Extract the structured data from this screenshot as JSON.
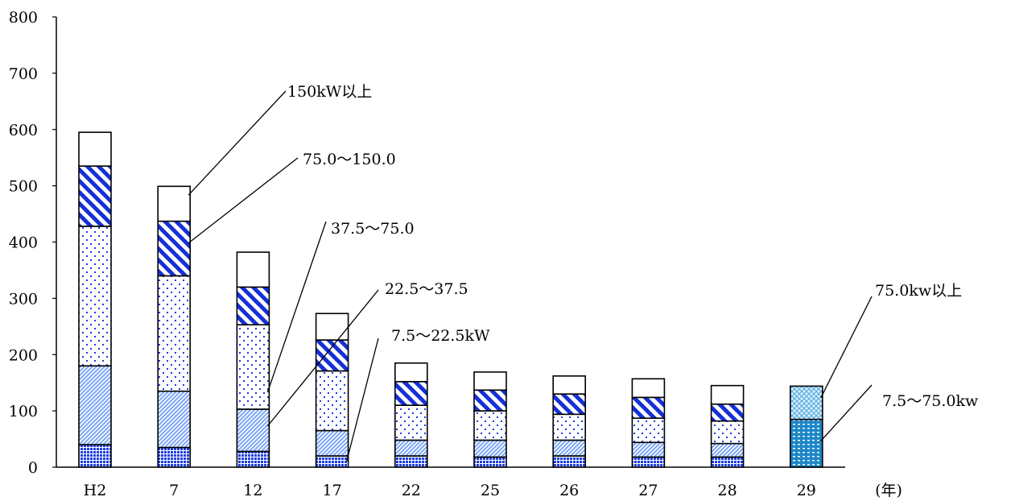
{
  "chart_data": {
    "type": "bar",
    "stacked": true,
    "title": "",
    "xlabel": "",
    "ylabel": "",
    "x_unit_label": "(年)",
    "ylim": [
      0,
      800
    ],
    "yticks": [
      0,
      100,
      200,
      300,
      400,
      500,
      600,
      700,
      800
    ],
    "grid": false,
    "legend": "none",
    "categories": [
      "H2",
      "7",
      "12",
      "17",
      "22",
      "25",
      "26",
      "27",
      "28",
      "29"
    ],
    "series": [
      {
        "name": "7.5～22.5kW",
        "values": [
          40,
          35,
          28,
          20,
          20,
          18,
          20,
          18,
          18,
          null
        ],
        "pattern": "blue-dense-dots",
        "color": "#1f3fe0"
      },
      {
        "name": "22.5～37.5",
        "values": [
          140,
          100,
          75,
          45,
          28,
          30,
          28,
          26,
          24,
          null
        ],
        "pattern": "light-blue-diagonal",
        "color": "#5b8ef0"
      },
      {
        "name": "37.5～75.0",
        "values": [
          248,
          205,
          150,
          106,
          62,
          52,
          46,
          43,
          40,
          null
        ],
        "pattern": "sparse-blue-dots",
        "color": "#1b3ddc"
      },
      {
        "name": "75.0～150.0",
        "values": [
          107,
          97,
          67,
          55,
          42,
          37,
          36,
          37,
          30,
          null
        ],
        "pattern": "blue-diagonal-stripes",
        "color": "#1530d8"
      },
      {
        "name": "150kW以上",
        "values": [
          60,
          62,
          62,
          47,
          33,
          32,
          32,
          33,
          33,
          null
        ],
        "pattern": "white",
        "color": "#ffffff"
      },
      {
        "name": "7.5～75.0kw",
        "values": [
          null,
          null,
          null,
          null,
          null,
          null,
          null,
          null,
          null,
          85
        ],
        "pattern": "teal-dots",
        "color": "#1e86c8"
      },
      {
        "name": "75.0kw以上",
        "values": [
          null,
          null,
          null,
          null,
          null,
          null,
          null,
          null,
          null,
          59
        ],
        "pattern": "light-teal-crosshatch",
        "color": "#6fb6e0"
      }
    ],
    "annotations": [
      {
        "text": "150kW以上",
        "series": "150kW以上",
        "category": "7"
      },
      {
        "text": "75.0～150.0",
        "series": "75.0～150.0",
        "category": "7"
      },
      {
        "text": "37.5～75.0",
        "series": "37.5～75.0",
        "category": "12"
      },
      {
        "text": "22.5～37.5",
        "series": "22.5～37.5",
        "category": "12"
      },
      {
        "text": "7.5～22.5kW",
        "series": "7.5～22.5kW",
        "category": "17"
      },
      {
        "text": "75.0kw以上",
        "series": "75.0kw以上",
        "category": "29"
      },
      {
        "text": "7.5～75.0kw",
        "series": "7.5～75.0kw",
        "category": "29"
      }
    ]
  }
}
